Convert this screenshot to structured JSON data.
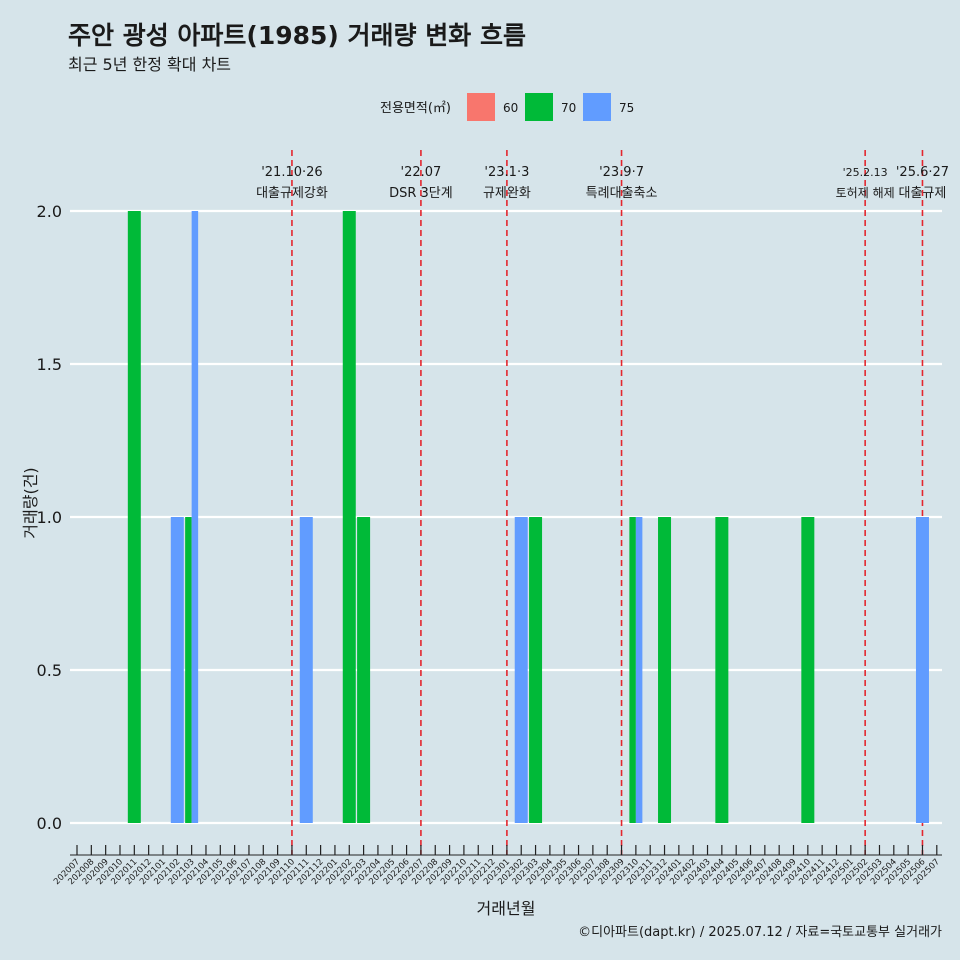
{
  "colors": {
    "background": "#d6e4ea",
    "grid": "#ffffff",
    "event_line": "#e3262e",
    "area_60": "#f8766d",
    "area_70": "#00ba38",
    "area_75": "#619cff"
  },
  "chart_data": {
    "type": "bar",
    "title": "주안 광성 아파트(1985) 거래량 변화 흐름",
    "subtitle": "최근 5년 한정 확대 차트",
    "xlabel": "거래년월",
    "ylabel": "거래량(건)",
    "ylim": [
      0,
      2
    ],
    "yticks": [
      "0.0",
      "0.5",
      "1.0",
      "1.5",
      "2.0"
    ],
    "legend": {
      "title": "전용면적(㎡)",
      "position": "top",
      "items": [
        {
          "label": "60",
          "color": "#f8766d"
        },
        {
          "label": "70",
          "color": "#00ba38"
        },
        {
          "label": "75",
          "color": "#619cff"
        }
      ]
    },
    "categories": [
      "202007",
      "202008",
      "202009",
      "202010",
      "202011",
      "202012",
      "202101",
      "202102",
      "202103",
      "202104",
      "202105",
      "202106",
      "202107",
      "202108",
      "202109",
      "202110",
      "202111",
      "202112",
      "202201",
      "202202",
      "202203",
      "202204",
      "202205",
      "202206",
      "202207",
      "202208",
      "202209",
      "202210",
      "202211",
      "202212",
      "202301",
      "202302",
      "202303",
      "202304",
      "202305",
      "202306",
      "202307",
      "202308",
      "202309",
      "202310",
      "202311",
      "202312",
      "202401",
      "202402",
      "202403",
      "202404",
      "202405",
      "202406",
      "202407",
      "202408",
      "202409",
      "202410",
      "202411",
      "202412",
      "202501",
      "202502",
      "202503",
      "202504",
      "202505",
      "202506",
      "202507"
    ],
    "bars": [
      {
        "month": "202011",
        "area": "70",
        "value": 2
      },
      {
        "month": "202102",
        "area": "75",
        "value": 1
      },
      {
        "month": "202103",
        "area": "70",
        "value": 1
      },
      {
        "month": "202103",
        "area": "75",
        "value": 2
      },
      {
        "month": "202111",
        "area": "75",
        "value": 1
      },
      {
        "month": "202202",
        "area": "70",
        "value": 2
      },
      {
        "month": "202203",
        "area": "70",
        "value": 1
      },
      {
        "month": "202302",
        "area": "75",
        "value": 1
      },
      {
        "month": "202303",
        "area": "70",
        "value": 1
      },
      {
        "month": "202310",
        "area": "70",
        "value": 1
      },
      {
        "month": "202310",
        "area": "75",
        "value": 1
      },
      {
        "month": "202312",
        "area": "70",
        "value": 1
      },
      {
        "month": "202404",
        "area": "70",
        "value": 1
      },
      {
        "month": "202410",
        "area": "70",
        "value": 1
      },
      {
        "month": "202506",
        "area": "75",
        "value": 1
      }
    ],
    "events": [
      {
        "position": "202110",
        "date_label": "'21.10·26",
        "desc": "대출규제강화"
      },
      {
        "position": "202207",
        "date_label": "'22.07",
        "desc": "DSR 3단계"
      },
      {
        "position": "202301",
        "date_label": "'23.1·3",
        "desc": "규제완화"
      },
      {
        "position": "202309",
        "date_label": "'23.9·7",
        "desc": "특례대출축소"
      },
      {
        "position": "202502",
        "date_label": "'25.2.13",
        "desc": "토허제 해제"
      },
      {
        "position": "202506",
        "date_label": "'25.6·27",
        "desc": "대출규제"
      }
    ],
    "caption": "©디아파트(dapt.kr) / 2025.07.12 / 자료=국토교통부 실거래가"
  }
}
